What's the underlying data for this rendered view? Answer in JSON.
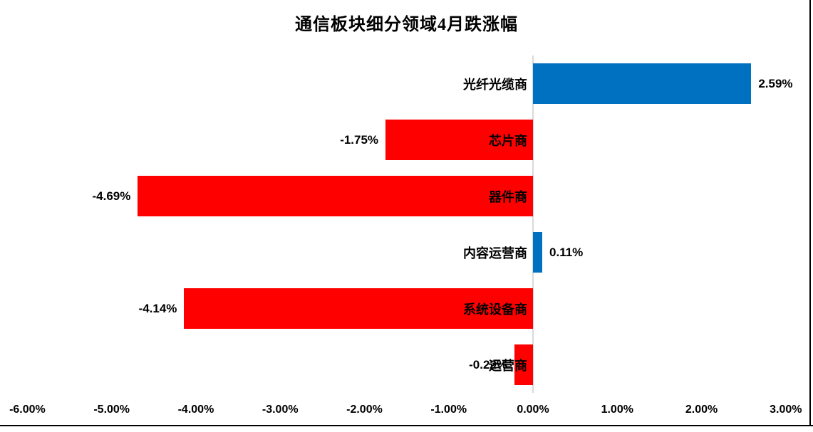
{
  "title": "通信板块细分领域4月跌涨幅",
  "chart_data": {
    "type": "bar",
    "orientation": "horizontal",
    "title": "通信板块细分领域4月跌涨幅",
    "xlabel": "",
    "ylabel": "",
    "categories": [
      "光纤光缆商",
      "芯片商",
      "器件商",
      "内容运营商",
      "系统设备商",
      "运营商"
    ],
    "values": [
      2.59,
      -1.75,
      -4.69,
      0.11,
      -4.14,
      -0.22
    ],
    "data_labels": [
      "2.59%",
      "-1.75%",
      "-4.69%",
      "0.11%",
      "-4.14%",
      "-0.22%"
    ],
    "x_tick_labels": [
      "-6.00%",
      "-5.00%",
      "-4.00%",
      "-3.00%",
      "-2.00%",
      "-1.00%",
      "0.00%",
      "1.00%",
      "2.00%",
      "3.00%"
    ],
    "x_tick_values": [
      -6,
      -5,
      -4,
      -3,
      -2,
      -1,
      0,
      1,
      2,
      3
    ],
    "xlim": [
      -6.325,
      3.323
    ],
    "grid": false,
    "legend": false,
    "colors": {
      "positive_bar": "#0070C0",
      "negative_bar": "#FF0000",
      "zero_axis_line": "#D9D9D9",
      "border": "#000000",
      "text": "#000000"
    }
  }
}
